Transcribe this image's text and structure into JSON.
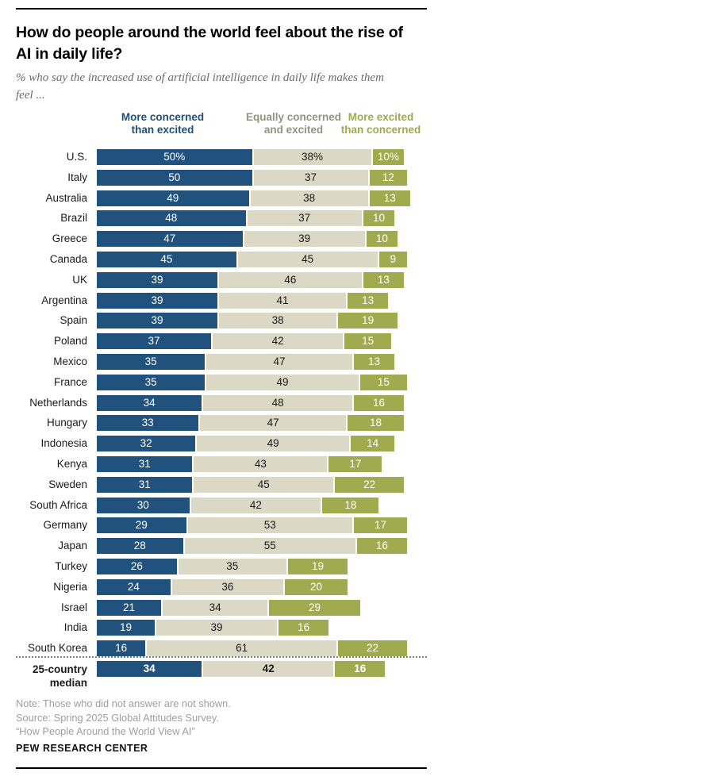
{
  "header": {
    "title_display": "How do people around the world feel about the rise of\nAI in daily life?",
    "subtitle_display": "% who say the increased use of artificial intelligence in daily life makes them\nfeel ..."
  },
  "legend": [
    {
      "label": "More concerned\nthan excited",
      "color": "#21527E",
      "text_color": "#1E4F7C"
    },
    {
      "label": "Equally concerned\nand excited",
      "color": "#DCD8C6",
      "text_color": "#97917F"
    },
    {
      "label": "More excited\nthan concerned",
      "color": "#A0AB50",
      "text_color": "#9FAA4E"
    }
  ],
  "chart_data": {
    "type": "bar",
    "stacked": true,
    "orientation": "horizontal",
    "title": "How do people around the world feel about the rise of AI in daily life?",
    "subtitle": "% who say the increased use of artificial intelligence in daily life makes them feel ...",
    "unit": "%",
    "xlim": [
      0,
      100
    ],
    "legend_position": "top",
    "grid": false,
    "series": [
      {
        "name": "More concerned than excited",
        "color": "#21527E",
        "label_color": "#ffffff"
      },
      {
        "name": "Equally concerned and excited",
        "color": "#DCD8C6",
        "label_color": "#1a1a1a"
      },
      {
        "name": "More excited than concerned",
        "color": "#A0AB50",
        "label_color": "#ffffff"
      }
    ],
    "rows": [
      {
        "country": "U.S.",
        "values": [
          50,
          38,
          10
        ],
        "display": [
          "50%",
          "38%",
          "10%"
        ]
      },
      {
        "country": "Italy",
        "values": [
          50,
          37,
          12
        ],
        "display": [
          "50",
          "37",
          "12"
        ]
      },
      {
        "country": "Australia",
        "values": [
          49,
          38,
          13
        ],
        "display": [
          "49",
          "38",
          "13"
        ]
      },
      {
        "country": "Brazil",
        "values": [
          48,
          37,
          10
        ],
        "display": [
          "48",
          "37",
          "10"
        ]
      },
      {
        "country": "Greece",
        "values": [
          47,
          39,
          10
        ],
        "display": [
          "47",
          "39",
          "10"
        ]
      },
      {
        "country": "Canada",
        "values": [
          45,
          45,
          9
        ],
        "display": [
          "45",
          "45",
          "9"
        ]
      },
      {
        "country": "UK",
        "values": [
          39,
          46,
          13
        ],
        "display": [
          "39",
          "46",
          "13"
        ]
      },
      {
        "country": "Argentina",
        "values": [
          39,
          41,
          13
        ],
        "display": [
          "39",
          "41",
          "13"
        ]
      },
      {
        "country": "Spain",
        "values": [
          39,
          38,
          19
        ],
        "display": [
          "39",
          "38",
          "19"
        ]
      },
      {
        "country": "Poland",
        "values": [
          37,
          42,
          15
        ],
        "display": [
          "37",
          "42",
          "15"
        ]
      },
      {
        "country": "Mexico",
        "values": [
          35,
          47,
          13
        ],
        "display": [
          "35",
          "47",
          "13"
        ]
      },
      {
        "country": "France",
        "values": [
          35,
          49,
          15
        ],
        "display": [
          "35",
          "49",
          "15"
        ]
      },
      {
        "country": "Netherlands",
        "values": [
          34,
          48,
          16
        ],
        "display": [
          "34",
          "48",
          "16"
        ]
      },
      {
        "country": "Hungary",
        "values": [
          33,
          47,
          18
        ],
        "display": [
          "33",
          "47",
          "18"
        ]
      },
      {
        "country": "Indonesia",
        "values": [
          32,
          49,
          14
        ],
        "display": [
          "32",
          "49",
          "14"
        ]
      },
      {
        "country": "Kenya",
        "values": [
          31,
          43,
          17
        ],
        "display": [
          "31",
          "43",
          "17"
        ]
      },
      {
        "country": "Sweden",
        "values": [
          31,
          45,
          22
        ],
        "display": [
          "31",
          "45",
          "22"
        ]
      },
      {
        "country": "South Africa",
        "values": [
          30,
          42,
          18
        ],
        "display": [
          "30",
          "42",
          "18"
        ]
      },
      {
        "country": "Germany",
        "values": [
          29,
          53,
          17
        ],
        "display": [
          "29",
          "53",
          "17"
        ]
      },
      {
        "country": "Japan",
        "values": [
          28,
          55,
          16
        ],
        "display": [
          "28",
          "55",
          "16"
        ]
      },
      {
        "country": "Turkey",
        "values": [
          26,
          35,
          19
        ],
        "display": [
          "26",
          "35",
          "19"
        ]
      },
      {
        "country": "Nigeria",
        "values": [
          24,
          36,
          20
        ],
        "display": [
          "24",
          "36",
          "20"
        ]
      },
      {
        "country": "Israel",
        "values": [
          21,
          34,
          29
        ],
        "display": [
          "21",
          "34",
          "29"
        ]
      },
      {
        "country": "India",
        "values": [
          19,
          39,
          16
        ],
        "display": [
          "19",
          "39",
          "16"
        ]
      },
      {
        "country": "South Korea",
        "values": [
          16,
          61,
          22
        ],
        "display": [
          "16",
          "61",
          "22"
        ]
      }
    ],
    "median": {
      "country": "25-country\nmedian",
      "values": [
        34,
        42,
        16
      ],
      "display": [
        "34",
        "42",
        "16"
      ]
    }
  },
  "footer": {
    "note": "Note: Those who did not answer are not shown.",
    "source": "Source: Spring 2025 Global Attitudes Survey.",
    "report": "“How People Around the World View AI”",
    "branding": "PEW RESEARCH CENTER"
  }
}
